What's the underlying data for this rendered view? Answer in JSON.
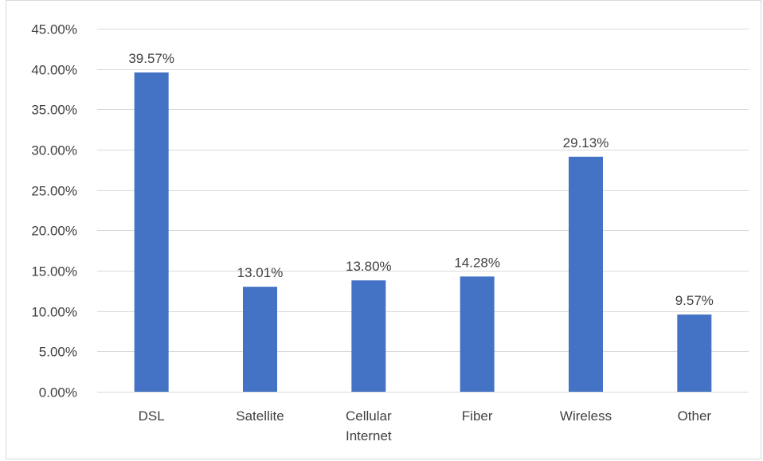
{
  "chart_data": {
    "type": "bar",
    "categories": [
      "DSL",
      "Satellite",
      "Cellular Internet",
      "Fiber",
      "Wireless",
      "Other"
    ],
    "category_label_lines": [
      [
        "DSL"
      ],
      [
        "Satellite"
      ],
      [
        "Cellular",
        "Internet"
      ],
      [
        "Fiber"
      ],
      [
        "Wireless"
      ],
      [
        "Other"
      ]
    ],
    "values": [
      39.57,
      13.01,
      13.8,
      14.28,
      29.13,
      9.57
    ],
    "data_labels": [
      "39.57%",
      "13.01%",
      "13.80%",
      "14.28%",
      "29.13%",
      "9.57%"
    ],
    "ylim": [
      0,
      45
    ],
    "yticks": [
      0,
      5,
      10,
      15,
      20,
      25,
      30,
      35,
      40,
      45
    ],
    "ytick_labels": [
      "0.00%",
      "5.00%",
      "10.00%",
      "15.00%",
      "20.00%",
      "25.00%",
      "30.00%",
      "35.00%",
      "40.00%",
      "45.00%"
    ],
    "title": "",
    "xlabel": "",
    "ylabel": "",
    "grid": true,
    "legend": "none",
    "colors": {
      "bar": "#4472c4",
      "grid": "#d9d9d9",
      "text": "#404040"
    }
  }
}
